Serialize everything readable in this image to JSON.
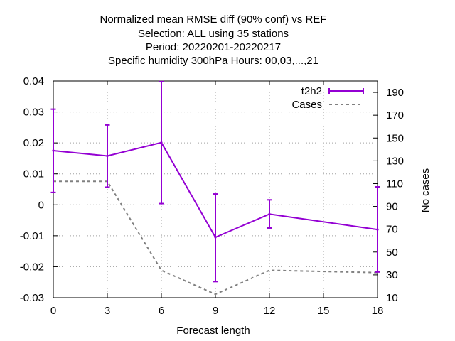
{
  "chart_data": {
    "type": "line",
    "title_lines": [
      "Normalized mean RMSE diff (90% conf) vs REF",
      "Selection: ALL using    35 stations",
      "Period: 20220201-20220217",
      "Specific humidity 300hPa   Hours:  00,03,...,21"
    ],
    "xlabel": "Forecast length",
    "ylabel_left": "",
    "ylabel_right": "No cases",
    "xlim": [
      0,
      18
    ],
    "ylim_left": [
      -0.03,
      0.04
    ],
    "ylim_right": [
      10,
      200
    ],
    "x_ticks": [
      0,
      3,
      6,
      9,
      12,
      15,
      18
    ],
    "y_ticks_left": [
      -0.03,
      -0.02,
      -0.01,
      0,
      0.01,
      0.02,
      0.03,
      0.04
    ],
    "y_ticks_left_labels": [
      "-0.03",
      "-0.02",
      "-0.01",
      "0",
      "0.01",
      "0.02",
      "0.03",
      "0.04"
    ],
    "y_ticks_right": [
      10,
      30,
      50,
      70,
      90,
      110,
      130,
      150,
      170,
      190
    ],
    "grid": true,
    "legend_position": "top-right",
    "series": [
      {
        "name": "t2h2",
        "color": "#9400d3",
        "axis": "left",
        "x": [
          0,
          3,
          6,
          9,
          12,
          18
        ],
        "y": [
          0.0175,
          0.0158,
          0.0201,
          -0.0105,
          -0.003,
          -0.008
        ],
        "err_low": [
          0.004,
          0.0057,
          0.0004,
          -0.0248,
          -0.0075,
          -0.0217
        ],
        "err_high": [
          0.0309,
          0.0258,
          0.0398,
          0.0035,
          0.0016,
          0.0058
        ]
      },
      {
        "name": "Cases",
        "color": "#808080",
        "axis": "right",
        "style": "dashed",
        "x": [
          0,
          3,
          6,
          9,
          12,
          15,
          18
        ],
        "y": [
          112,
          112,
          34,
          13,
          34,
          33,
          32
        ]
      }
    ]
  }
}
